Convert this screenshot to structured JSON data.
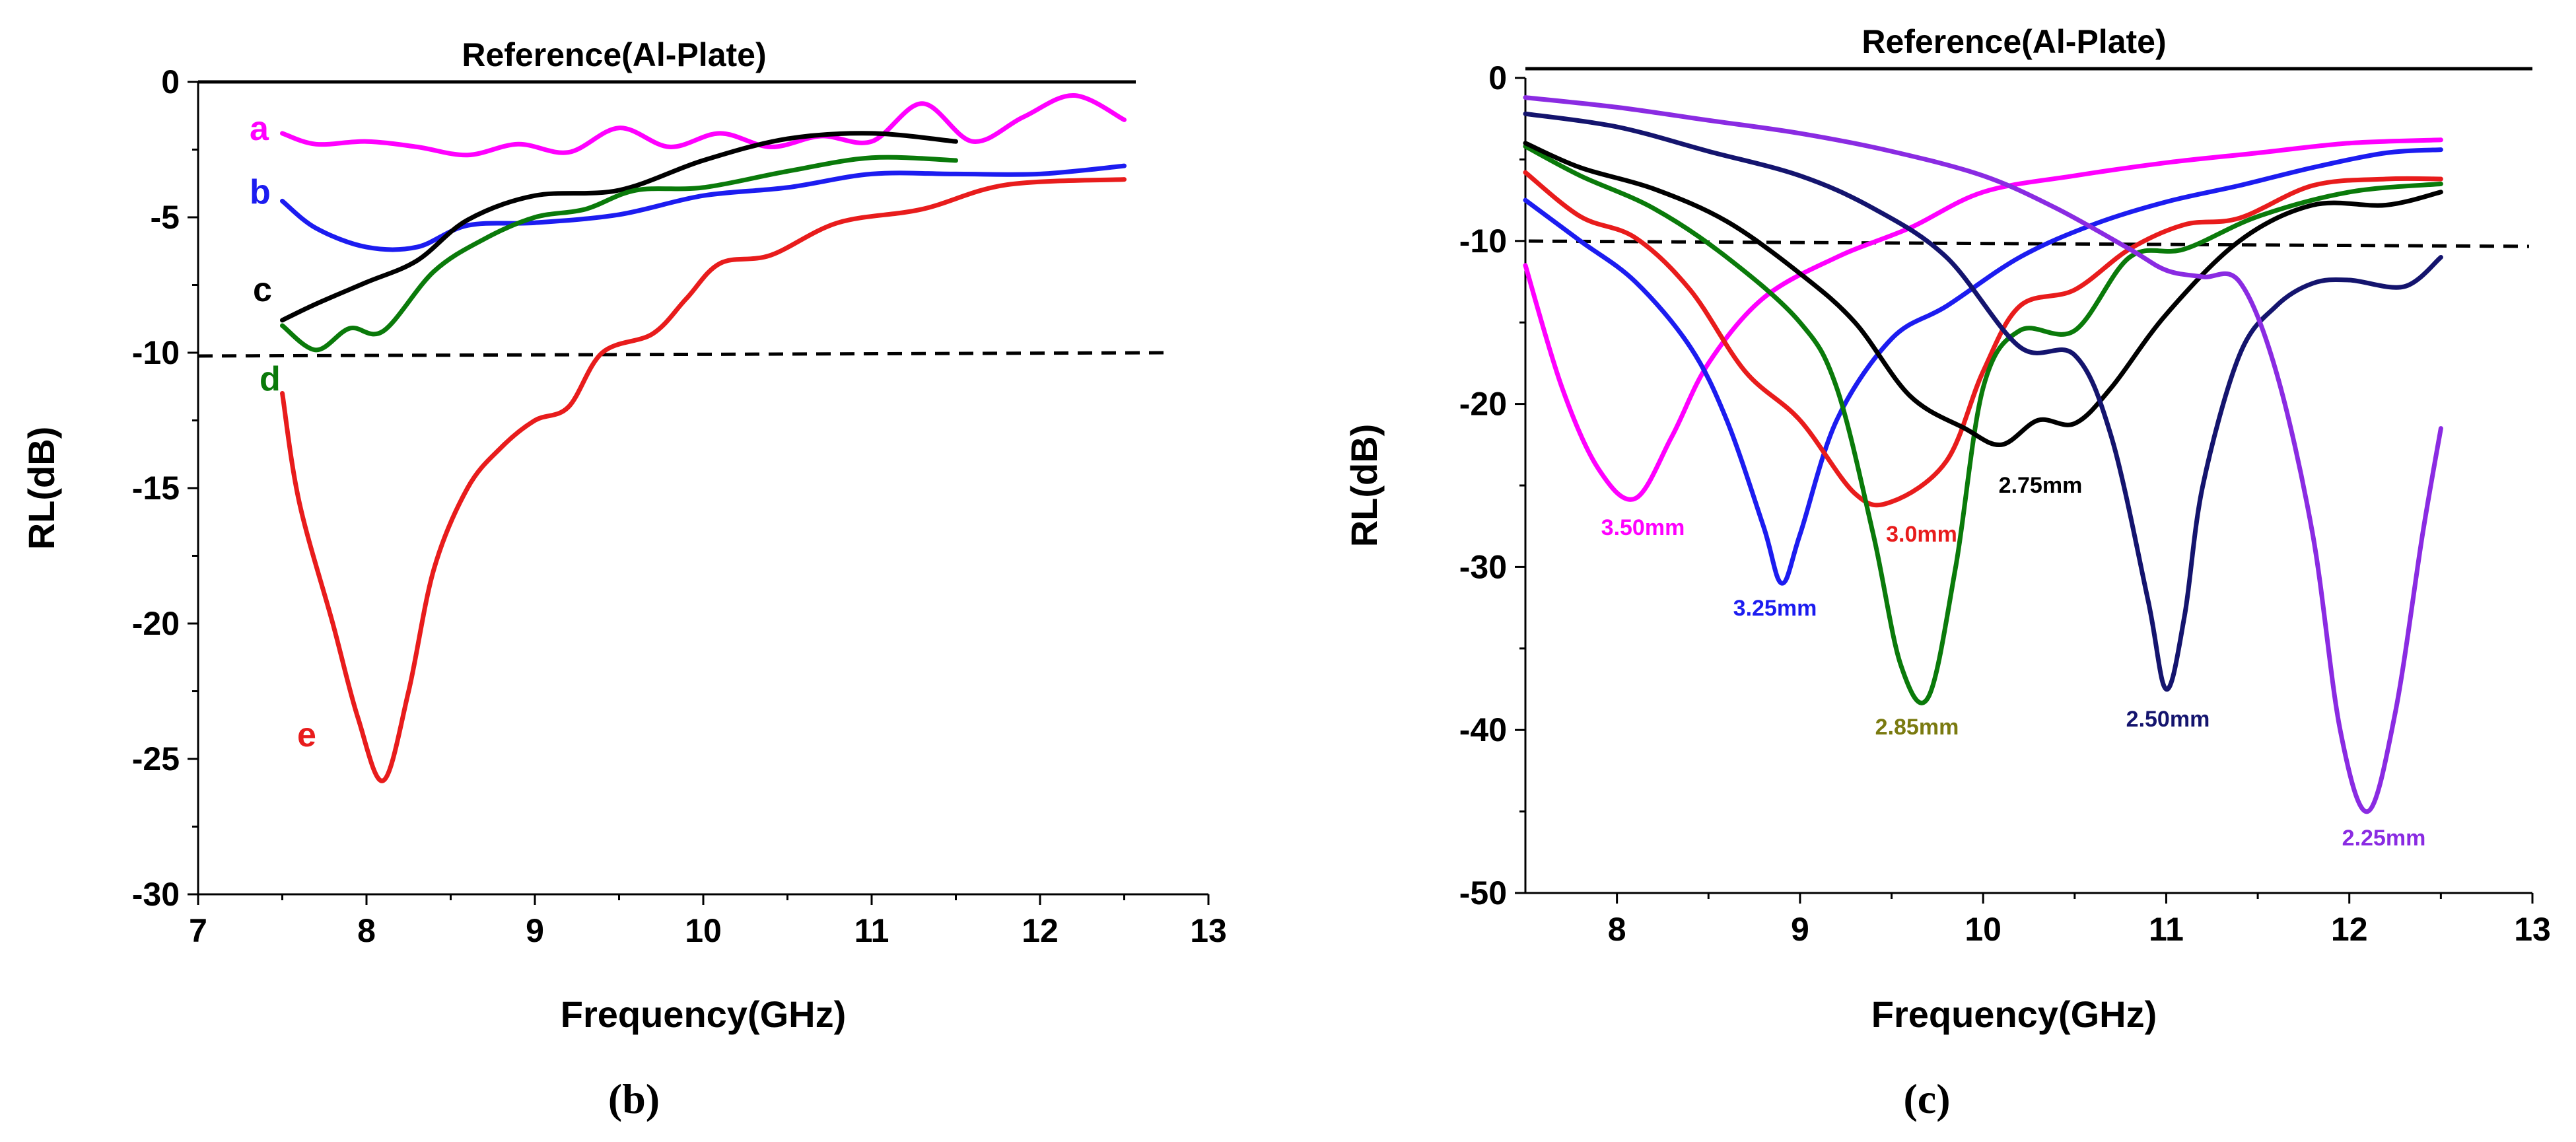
{
  "chart_data": [
    {
      "type": "line",
      "panel_label": "(b)",
      "reference_label": "Reference(Al-Plate)",
      "xlabel": "Frequency(GHz)",
      "ylabel": "RL(dB)",
      "xlim": [
        7,
        13
      ],
      "ylim": [
        -30,
        0
      ],
      "xticks": [
        "7",
        "8",
        "9",
        "10",
        "11",
        "12",
        "13"
      ],
      "yticks": [
        "0",
        "-5",
        "-10",
        "-15",
        "-20",
        "-25",
        "-30"
      ],
      "threshold": -10,
      "series": [
        {
          "name": "a",
          "color": "#ff00ff",
          "x": [
            7.5,
            7.7,
            8.0,
            8.3,
            8.6,
            8.9,
            9.2,
            9.5,
            9.8,
            10.1,
            10.4,
            10.7,
            11.0,
            11.3,
            11.6,
            11.9,
            12.2,
            12.5
          ],
          "y": [
            -1.9,
            -2.3,
            -2.2,
            -2.4,
            -2.7,
            -2.3,
            -2.6,
            -1.7,
            -2.4,
            -1.9,
            -2.4,
            -2.0,
            -2.2,
            -0.8,
            -2.2,
            -1.3,
            -0.5,
            -1.4
          ]
        },
        {
          "name": "b",
          "color": "#1c1cf0",
          "x": [
            7.5,
            7.7,
            8.0,
            8.3,
            8.6,
            9.0,
            9.5,
            10.0,
            10.5,
            11.0,
            11.5,
            12.0,
            12.5
          ],
          "y": [
            -4.4,
            -5.4,
            -6.1,
            -6.1,
            -5.3,
            -5.2,
            -4.9,
            -4.2,
            -3.9,
            -3.4,
            -3.4,
            -3.4,
            -3.1
          ]
        },
        {
          "name": "c",
          "color": "#000000",
          "x": [
            7.5,
            7.7,
            8.0,
            8.3,
            8.6,
            9.0,
            9.5,
            10.0,
            10.5,
            11.0,
            11.5
          ],
          "y": [
            -8.8,
            -8.2,
            -7.4,
            -6.6,
            -5.1,
            -4.2,
            -4.0,
            -2.9,
            -2.1,
            -1.9,
            -2.2
          ]
        },
        {
          "name": "d",
          "color": "#0a7a0a",
          "x": [
            7.5,
            7.7,
            7.9,
            8.1,
            8.4,
            8.7,
            9.0,
            9.3,
            9.6,
            10.0,
            10.5,
            11.0,
            11.5
          ],
          "y": [
            -9.0,
            -9.9,
            -9.1,
            -9.2,
            -7.0,
            -5.8,
            -5.0,
            -4.7,
            -4.0,
            -3.9,
            -3.3,
            -2.8,
            -2.9
          ]
        },
        {
          "name": "e",
          "color": "#e81c1c",
          "x": [
            7.5,
            7.6,
            7.8,
            7.95,
            8.1,
            8.25,
            8.4,
            8.6,
            8.8,
            9.0,
            9.2,
            9.4,
            9.7,
            9.9,
            10.1,
            10.4,
            10.8,
            11.3,
            11.8,
            12.5
          ],
          "y": [
            -11.5,
            -15.5,
            -20.0,
            -23.5,
            -25.8,
            -22.5,
            -18.0,
            -15.0,
            -13.5,
            -12.5,
            -12.0,
            -10.0,
            -9.3,
            -8.0,
            -6.7,
            -6.4,
            -5.2,
            -4.7,
            -3.8,
            -3.6
          ]
        }
      ],
      "series_labels": [
        "a",
        "b",
        "c",
        "d",
        "e"
      ]
    },
    {
      "type": "line",
      "panel_label": "(c)",
      "reference_label": "Reference(Al-Plate)",
      "xlabel": "Frequency(GHz)",
      "ylabel": "RL(dB)",
      "xlim": [
        7.5,
        13
      ],
      "ylim": [
        -50,
        0
      ],
      "xticks": [
        "8",
        "9",
        "10",
        "11",
        "12",
        "13"
      ],
      "yticks": [
        "0",
        "-10",
        "-20",
        "-30",
        "-40",
        "-50"
      ],
      "threshold": -10,
      "series": [
        {
          "name": "3.50mm",
          "color": "#ff00ff",
          "x": [
            7.5,
            7.7,
            7.9,
            8.1,
            8.3,
            8.5,
            8.8,
            9.2,
            9.6,
            10.0,
            10.5,
            11.0,
            11.5,
            12.0,
            12.5
          ],
          "y": [
            -11.5,
            -19.0,
            -24.0,
            -25.8,
            -22.0,
            -17.5,
            -13.5,
            -11.0,
            -9.2,
            -7.0,
            -6.0,
            -5.2,
            -4.6,
            -4.0,
            -3.8
          ]
        },
        {
          "name": "3.25mm",
          "color": "#1c1cf0",
          "x": [
            7.5,
            7.8,
            8.1,
            8.4,
            8.6,
            8.8,
            8.9,
            9.0,
            9.2,
            9.5,
            9.8,
            10.2,
            10.6,
            11.0,
            11.4,
            11.8,
            12.2,
            12.5
          ],
          "y": [
            -7.5,
            -10.0,
            -12.5,
            -16.5,
            -21.0,
            -27.5,
            -31.0,
            -28.0,
            -21.0,
            -16.0,
            -14.0,
            -11.0,
            -9.0,
            -7.6,
            -6.6,
            -5.5,
            -4.6,
            -4.4
          ]
        },
        {
          "name": "3.0mm",
          "color": "#e81c1c",
          "x": [
            7.5,
            7.8,
            8.1,
            8.4,
            8.7,
            9.0,
            9.3,
            9.5,
            9.8,
            10.0,
            10.2,
            10.5,
            10.8,
            11.1,
            11.4,
            11.8,
            12.2,
            12.5
          ],
          "y": [
            -5.8,
            -8.5,
            -9.8,
            -13.0,
            -18.0,
            -21.0,
            -25.5,
            -26.0,
            -23.5,
            -18.0,
            -14.0,
            -13.0,
            -10.5,
            -9.0,
            -8.6,
            -6.6,
            -6.2,
            -6.2
          ]
        },
        {
          "name": "2.85mm",
          "color": "#0a7a0a",
          "x": [
            7.5,
            7.8,
            8.2,
            8.6,
            9.0,
            9.2,
            9.4,
            9.55,
            9.7,
            9.85,
            10.0,
            10.2,
            10.5,
            10.8,
            11.1,
            11.5,
            12.0,
            12.5
          ],
          "y": [
            -4.2,
            -6.0,
            -8.0,
            -11.0,
            -15.0,
            -19.0,
            -28.0,
            -36.0,
            -38.0,
            -30.0,
            -19.0,
            -15.5,
            -15.5,
            -11.0,
            -10.5,
            -8.5,
            -7.0,
            -6.5
          ]
        },
        {
          "name": "2.75mm",
          "color": "#000000",
          "x": [
            7.5,
            7.8,
            8.2,
            8.6,
            9.0,
            9.3,
            9.6,
            9.9,
            10.1,
            10.3,
            10.5,
            10.7,
            11.0,
            11.4,
            11.8,
            12.2,
            12.5
          ],
          "y": [
            -4.0,
            -5.5,
            -6.8,
            -8.8,
            -12.0,
            -15.0,
            -19.5,
            -21.5,
            -22.5,
            -21.0,
            -21.2,
            -19.0,
            -14.5,
            -10.0,
            -7.8,
            -7.8,
            -7.0
          ]
        },
        {
          "name": "2.50mm",
          "color": "#14146e",
          "x": [
            7.5,
            8.0,
            8.5,
            9.0,
            9.4,
            9.8,
            10.2,
            10.5,
            10.7,
            10.9,
            11.0,
            11.1,
            11.2,
            11.4,
            11.6,
            11.8,
            12.0,
            12.3,
            12.5
          ],
          "y": [
            -2.2,
            -3.0,
            -4.5,
            -6.0,
            -8.0,
            -11.0,
            -16.5,
            -17.0,
            -22.0,
            -32.0,
            -37.5,
            -33.0,
            -25.0,
            -17.0,
            -14.0,
            -12.6,
            -12.4,
            -12.8,
            -11.0
          ]
        },
        {
          "name": "2.25mm",
          "color": "#8a2be2",
          "x": [
            7.5,
            8.0,
            8.5,
            9.0,
            9.5,
            10.0,
            10.4,
            10.8,
            11.0,
            11.2,
            11.4,
            11.6,
            11.8,
            11.95,
            12.1,
            12.25,
            12.4,
            12.5
          ],
          "y": [
            -1.2,
            -1.8,
            -2.6,
            -3.4,
            -4.5,
            -6.0,
            -8.0,
            -10.5,
            -11.8,
            -12.2,
            -12.5,
            -18.0,
            -28.0,
            -40.0,
            -45.0,
            -39.0,
            -28.0,
            -21.5
          ]
        }
      ],
      "series_labels": [
        "3.50mm",
        "3.25mm",
        "3.0mm",
        "2.85mm",
        "2.75mm",
        "2.50mm",
        "2.25mm"
      ]
    }
  ]
}
